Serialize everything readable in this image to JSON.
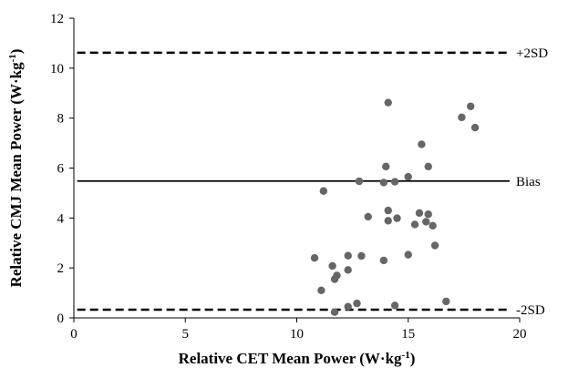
{
  "chart_data": {
    "type": "scatter",
    "title": "",
    "xlabel": "Relative CET Mean Power (W·kg",
    "xlabel_sup": "-1",
    "xlabel_end": ")",
    "ylabel": "Relative CMJ Mean Power (W·kg",
    "ylabel_sup": "-1",
    "ylabel_end": ")",
    "xlim": [
      0,
      20
    ],
    "ylim": [
      0,
      12
    ],
    "xticks": [
      0,
      5,
      10,
      15,
      20
    ],
    "yticks": [
      0,
      2,
      4,
      6,
      8,
      10,
      12
    ],
    "grid": false,
    "marker_color": "#666666",
    "reference_lines": [
      {
        "name": "upper-loa",
        "label": "+2SD",
        "y": 10.62,
        "style": "dashed"
      },
      {
        "name": "bias",
        "label": "Bias",
        "y": 5.48,
        "style": "solid"
      },
      {
        "name": "lower-loa",
        "label": "-2SD",
        "y": 0.33,
        "style": "dashed"
      }
    ],
    "points": [
      {
        "x": 14.1,
        "y": 8.62
      },
      {
        "x": 17.8,
        "y": 8.47
      },
      {
        "x": 17.4,
        "y": 8.03
      },
      {
        "x": 18.0,
        "y": 7.62
      },
      {
        "x": 15.6,
        "y": 6.95
      },
      {
        "x": 14.0,
        "y": 6.06
      },
      {
        "x": 15.9,
        "y": 6.06
      },
      {
        "x": 15.0,
        "y": 5.65
      },
      {
        "x": 12.8,
        "y": 5.47
      },
      {
        "x": 13.9,
        "y": 5.42
      },
      {
        "x": 14.4,
        "y": 5.45
      },
      {
        "x": 11.2,
        "y": 5.08
      },
      {
        "x": 14.1,
        "y": 4.3
      },
      {
        "x": 15.5,
        "y": 4.2
      },
      {
        "x": 15.9,
        "y": 4.15
      },
      {
        "x": 13.2,
        "y": 4.05
      },
      {
        "x": 14.5,
        "y": 3.99
      },
      {
        "x": 14.1,
        "y": 3.89
      },
      {
        "x": 15.8,
        "y": 3.85
      },
      {
        "x": 15.3,
        "y": 3.74
      },
      {
        "x": 16.1,
        "y": 3.69
      },
      {
        "x": 16.2,
        "y": 2.9
      },
      {
        "x": 15.0,
        "y": 2.53
      },
      {
        "x": 12.3,
        "y": 2.49
      },
      {
        "x": 12.9,
        "y": 2.48
      },
      {
        "x": 10.8,
        "y": 2.4
      },
      {
        "x": 13.9,
        "y": 2.3
      },
      {
        "x": 11.6,
        "y": 2.08
      },
      {
        "x": 12.3,
        "y": 1.92
      },
      {
        "x": 11.8,
        "y": 1.7
      },
      {
        "x": 11.7,
        "y": 1.55
      },
      {
        "x": 11.1,
        "y": 1.1
      },
      {
        "x": 16.7,
        "y": 0.66
      },
      {
        "x": 12.7,
        "y": 0.58
      },
      {
        "x": 14.4,
        "y": 0.5
      },
      {
        "x": 12.3,
        "y": 0.45
      },
      {
        "x": 11.7,
        "y": 0.23
      }
    ]
  }
}
